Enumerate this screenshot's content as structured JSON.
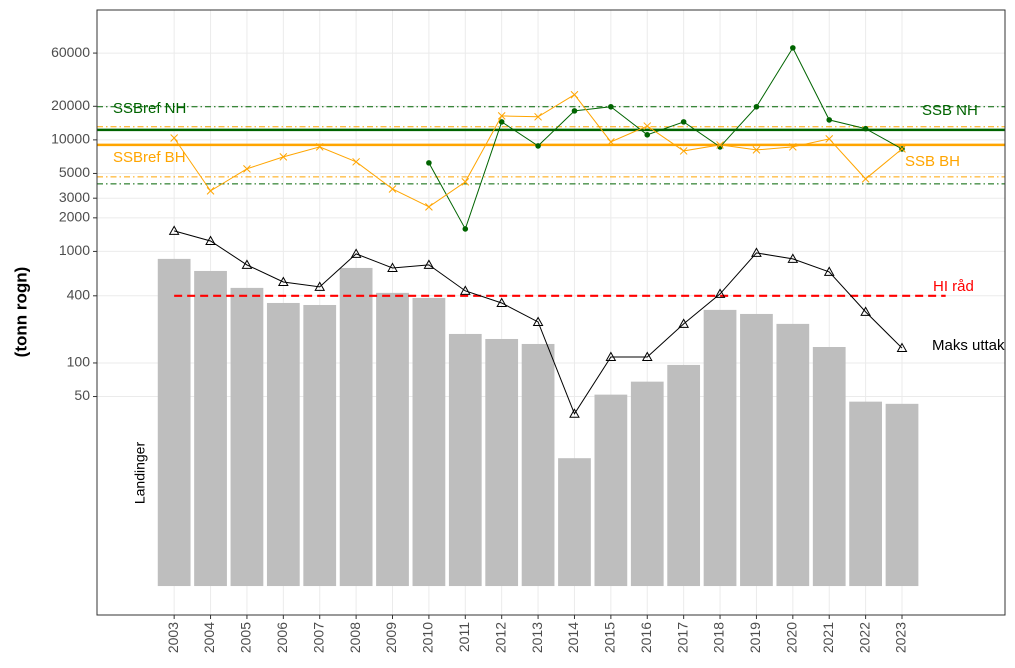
{
  "chart_data": {
    "type": "bar",
    "log_y": true,
    "grid": true,
    "y_label": "(tonn rogn)",
    "x": [
      2003,
      2004,
      2005,
      2006,
      2007,
      2008,
      2009,
      2010,
      2011,
      2012,
      2013,
      2014,
      2015,
      2016,
      2017,
      2018,
      2019,
      2020,
      2021,
      2022,
      2023
    ],
    "xlim": [
      2000.88,
      2025.83
    ],
    "xticks": [
      2003,
      2004,
      2005,
      2006,
      2007,
      2008,
      2009,
      2010,
      2011,
      2012,
      2013,
      2014,
      2015,
      2016,
      2017,
      2018,
      2019,
      2020,
      2021,
      2022,
      2023
    ],
    "ylim": [
      0.55,
      146000
    ],
    "yticks": [
      50,
      100,
      400,
      1000,
      2000,
      3000,
      5000,
      10000,
      20000,
      60000
    ],
    "series": [
      {
        "name": "Landinger",
        "type": "bar",
        "color": "#bebebe",
        "values": [
          857,
          668,
          471,
          345,
          331,
          711,
          425,
          383,
          182,
          164,
          148,
          14,
          52,
          68,
          96,
          299,
          275,
          224,
          139,
          45,
          43
        ]
      },
      {
        "name": "Maks uttak",
        "type": "line",
        "marker": "triangle",
        "color": "#000000",
        "values": [
          1528,
          1240,
          757,
          532,
          481,
          951,
          711,
          757,
          443,
          345,
          233,
          35,
          113,
          113,
          224,
          416,
          970,
          857,
          655,
          287,
          136
        ]
      },
      {
        "name": "SSB NH",
        "type": "line",
        "marker": "dot",
        "color": "#006400",
        "values": [
          null,
          null,
          null,
          null,
          null,
          null,
          null,
          6220,
          1590,
          14500,
          8830,
          18200,
          19800,
          11100,
          14500,
          8650,
          19800,
          66800,
          15100,
          12600,
          8300
        ]
      },
      {
        "name": "SSB BH",
        "type": "line",
        "marker": "cross",
        "color": "#ffa500",
        "values": [
          10400,
          3490,
          5500,
          7040,
          8650,
          6360,
          3630,
          2510,
          4200,
          16400,
          16100,
          25400,
          9600,
          13300,
          7960,
          9010,
          8130,
          8650,
          10200,
          4470,
          8300
        ]
      }
    ],
    "reference_lines": [
      {
        "label": "SSBref NH",
        "value": 12300,
        "color": "#006400",
        "style": "solid"
      },
      {
        "label": "SSBref BH",
        "value": 9010,
        "color": "#ffa500",
        "style": "solid"
      },
      {
        "value": 19800,
        "color": "#006400",
        "style": "dashdot"
      },
      {
        "value": 4030,
        "color": "#006400",
        "style": "dashdot"
      },
      {
        "value": 13100,
        "color": "#ffa500",
        "style": "dashdot"
      },
      {
        "value": 4660,
        "color": "#ffa500",
        "style": "dashdot"
      },
      {
        "label": "HI råd",
        "value": 400,
        "color": "#ff0000",
        "style": "dashed"
      }
    ]
  }
}
